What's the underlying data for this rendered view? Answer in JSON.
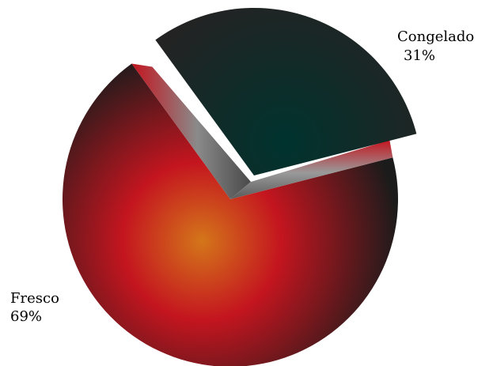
{
  "chart_data": {
    "type": "pie",
    "title": "",
    "categories": [
      "Fresco",
      "Congelado"
    ],
    "values": [
      69,
      31
    ],
    "value_labels": [
      "69%",
      "31%"
    ],
    "exploded": [
      false,
      true
    ],
    "colors": {
      "Fresco": {
        "center": "#d4761a",
        "mid": "#c4151f",
        "edge": "#1b1b1b"
      },
      "Congelado": {
        "center": "#00332e",
        "edge": "#232323"
      }
    },
    "legend": "none"
  }
}
